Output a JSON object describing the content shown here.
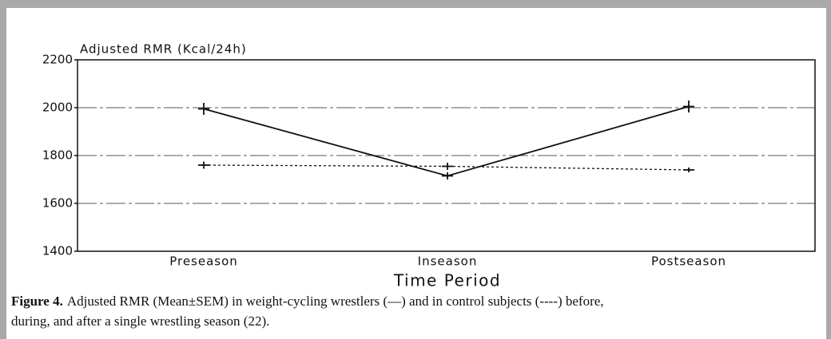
{
  "chart_data": {
    "type": "line",
    "title": "Adjusted RMR (Kcal/24h)",
    "x_label": "Time Period",
    "categories": [
      "Preseason",
      "Inseason",
      "Postseason"
    ],
    "series": [
      {
        "color": "#111111",
        "dash": "solid",
        "values": [
          1995,
          1715,
          2005
        ],
        "errors": [
          25,
          15,
          25
        ]
      },
      {
        "color": "#111111",
        "dash": "dashed",
        "values": [
          1760,
          1755,
          1740
        ],
        "errors": [
          15,
          15,
          10
        ]
      }
    ],
    "ylim": [
      1400,
      2200
    ],
    "yticks": [
      1400,
      1600,
      1800,
      2000,
      2200
    ],
    "grid": true
  },
  "caption": {
    "label": "Figure 4.",
    "text_line1": "Adjusted RMR (Mean±SEM) in weight-cycling wrestlers (—) and in control subjects (----) before,",
    "text_line2": "during, and after a single wrestling season (22)."
  }
}
